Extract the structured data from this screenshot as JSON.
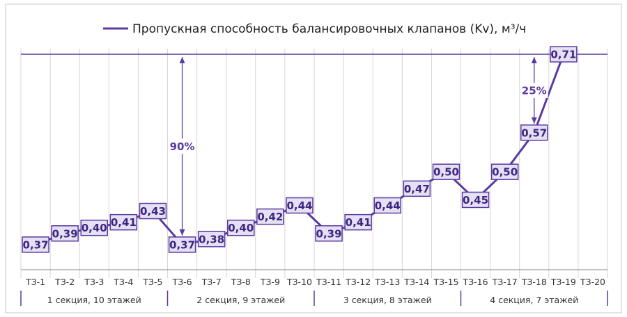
{
  "chart_data": {
    "type": "line",
    "legend": {
      "label": "Пропускная способность балансировочных клапанов (Kv), м³/ч",
      "position": "top-center",
      "color": "#5b3aa0"
    },
    "categories": [
      "ТЗ-1",
      "ТЗ-2",
      "ТЗ-3",
      "ТЗ-4",
      "ТЗ-5",
      "ТЗ-6",
      "ТЗ-7",
      "ТЗ-8",
      "ТЗ-9",
      "ТЗ-10",
      "ТЗ-11",
      "ТЗ-12",
      "ТЗ-13",
      "ТЗ-14",
      "ТЗ-15",
      "ТЗ-16",
      "ТЗ-17",
      "ТЗ-18",
      "ТЗ-19",
      "ТЗ-20"
    ],
    "series": [
      {
        "name": "Пропускная способность балансировочных клапанов (Kv), м³/ч",
        "color": "#5b3aa0",
        "segments": [
          {
            "x": [
              "ТЗ-1",
              "ТЗ-2",
              "ТЗ-3",
              "ТЗ-4",
              "ТЗ-5",
              "ТЗ-6",
              "ТЗ-7",
              "ТЗ-8",
              "ТЗ-9",
              "ТЗ-10",
              "ТЗ-11",
              "ТЗ-12",
              "ТЗ-13",
              "ТЗ-14",
              "ТЗ-15",
              "ТЗ-16",
              "ТЗ-17",
              "ТЗ-18",
              "ТЗ-19"
            ],
            "values": [
              0.37,
              0.39,
              0.4,
              0.41,
              0.43,
              0.37,
              0.38,
              0.4,
              0.42,
              0.44,
              0.39,
              0.41,
              0.44,
              0.47,
              0.5,
              0.45,
              0.5,
              0.57,
              0.71
            ]
          }
        ],
        "data_labels": [
          "0,37",
          "0,39",
          "0,40",
          "0,41",
          "0,43",
          "0,37",
          "0,38",
          "0,40",
          "0,42",
          "0,44",
          "0,39",
          "0,41",
          "0,44",
          "0,47",
          "0,50",
          "0,45",
          "0,50",
          "0,57",
          "0,71"
        ]
      }
    ],
    "ylim": [
      0.35,
      0.72
    ],
    "grid": {
      "vertical": true,
      "horizontal": false
    },
    "reference_line": {
      "value": 0.71
    },
    "groups": [
      {
        "label": "1 секция, 10 этажей",
        "from": "ТЗ-1",
        "to": "ТЗ-5"
      },
      {
        "label": "2 секция, 9 этажей",
        "from": "ТЗ-6",
        "to": "ТЗ-10"
      },
      {
        "label": "3 секция, 8 этажей",
        "from": "ТЗ-11",
        "to": "ТЗ-15"
      },
      {
        "label": "4 секция, 7 этажей",
        "from": "ТЗ-16",
        "to": "ТЗ-20"
      }
    ],
    "annotations": [
      {
        "label": "90%",
        "at": "ТЗ-6",
        "from_value": 0.37,
        "to_value": 0.71
      },
      {
        "label": "25%",
        "at": "ТЗ-18",
        "from_value": 0.57,
        "to_value": 0.71
      }
    ]
  }
}
